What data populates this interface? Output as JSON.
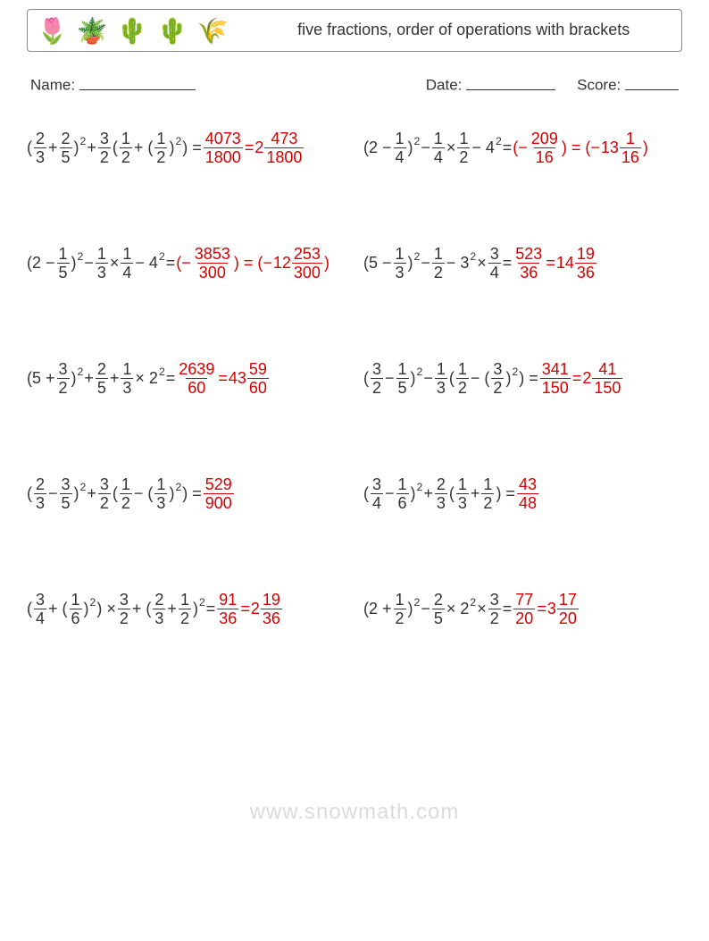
{
  "header": {
    "icons": [
      "🌷",
      "🪴",
      "🌵",
      "🌵",
      "🌾"
    ],
    "title": "five fractions, order of operations with brackets"
  },
  "info": {
    "name_label": "Name:",
    "date_label": "Date:",
    "score_label": "Score:"
  },
  "colors": {
    "text": "#333333",
    "answer": "#d40000",
    "border": "#888888"
  },
  "watermark": "www.snowmath.com",
  "problems": [
    [
      {
        "tokens": [
          {
            "t": "txt",
            "v": "("
          },
          {
            "t": "frac",
            "n": "2",
            "d": "3"
          },
          {
            "t": "txt",
            "v": " + "
          },
          {
            "t": "frac",
            "n": "2",
            "d": "5"
          },
          {
            "t": "txt",
            "v": ")"
          },
          {
            "t": "sup",
            "v": "2"
          },
          {
            "t": "txt",
            "v": " + "
          },
          {
            "t": "frac",
            "n": "3",
            "d": "2"
          },
          {
            "t": "txt",
            "v": "("
          },
          {
            "t": "frac",
            "n": "1",
            "d": "2"
          },
          {
            "t": "txt",
            "v": " + ("
          },
          {
            "t": "frac",
            "n": "1",
            "d": "2"
          },
          {
            "t": "txt",
            "v": ")"
          },
          {
            "t": "sup",
            "v": "2"
          },
          {
            "t": "txt",
            "v": ") = "
          },
          {
            "t": "ans",
            "c": [
              {
                "t": "frac",
                "n": "4073",
                "d": "1800"
              },
              {
                "t": "txt",
                "v": " = "
              },
              {
                "t": "mix",
                "w": "2",
                "n": "473",
                "d": "1800"
              }
            ]
          }
        ]
      },
      {
        "tokens": [
          {
            "t": "txt",
            "v": "(2 − "
          },
          {
            "t": "frac",
            "n": "1",
            "d": "4"
          },
          {
            "t": "txt",
            "v": ")"
          },
          {
            "t": "sup",
            "v": "2"
          },
          {
            "t": "txt",
            "v": " − "
          },
          {
            "t": "frac",
            "n": "1",
            "d": "4"
          },
          {
            "t": "txt",
            "v": " × "
          },
          {
            "t": "frac",
            "n": "1",
            "d": "2"
          },
          {
            "t": "txt",
            "v": " − 4"
          },
          {
            "t": "sup",
            "v": "2"
          },
          {
            "t": "txt",
            "v": " = "
          },
          {
            "t": "ans",
            "c": [
              {
                "t": "txt",
                "v": "(−"
              },
              {
                "t": "frac",
                "n": "209",
                "d": "16"
              },
              {
                "t": "txt",
                "v": ") = (−"
              },
              {
                "t": "mix",
                "w": "13",
                "n": "1",
                "d": "16"
              },
              {
                "t": "txt",
                "v": ")"
              }
            ]
          }
        ]
      }
    ],
    [
      {
        "tokens": [
          {
            "t": "txt",
            "v": "(2 − "
          },
          {
            "t": "frac",
            "n": "1",
            "d": "5"
          },
          {
            "t": "txt",
            "v": ")"
          },
          {
            "t": "sup",
            "v": "2"
          },
          {
            "t": "txt",
            "v": " − "
          },
          {
            "t": "frac",
            "n": "1",
            "d": "3"
          },
          {
            "t": "txt",
            "v": " × "
          },
          {
            "t": "frac",
            "n": "1",
            "d": "4"
          },
          {
            "t": "txt",
            "v": " − 4"
          },
          {
            "t": "sup",
            "v": "2"
          },
          {
            "t": "txt",
            "v": " = "
          },
          {
            "t": "ans",
            "c": [
              {
                "t": "txt",
                "v": "(−"
              },
              {
                "t": "frac",
                "n": "3853",
                "d": "300"
              },
              {
                "t": "txt",
                "v": ") = (−"
              },
              {
                "t": "mix",
                "w": "12",
                "n": "253",
                "d": "300"
              },
              {
                "t": "txt",
                "v": ")"
              }
            ]
          }
        ]
      },
      {
        "tokens": [
          {
            "t": "txt",
            "v": "(5 − "
          },
          {
            "t": "frac",
            "n": "1",
            "d": "3"
          },
          {
            "t": "txt",
            "v": ")"
          },
          {
            "t": "sup",
            "v": "2"
          },
          {
            "t": "txt",
            "v": " − "
          },
          {
            "t": "frac",
            "n": "1",
            "d": "2"
          },
          {
            "t": "txt",
            "v": " − 3"
          },
          {
            "t": "sup",
            "v": "2"
          },
          {
            "t": "txt",
            "v": " × "
          },
          {
            "t": "frac",
            "n": "3",
            "d": "4"
          },
          {
            "t": "txt",
            "v": " = "
          },
          {
            "t": "ans",
            "c": [
              {
                "t": "frac",
                "n": "523",
                "d": "36"
              },
              {
                "t": "txt",
                "v": " = "
              },
              {
                "t": "mix",
                "w": "14",
                "n": "19",
                "d": "36"
              }
            ]
          }
        ]
      }
    ],
    [
      {
        "tokens": [
          {
            "t": "txt",
            "v": "(5 + "
          },
          {
            "t": "frac",
            "n": "3",
            "d": "2"
          },
          {
            "t": "txt",
            "v": ")"
          },
          {
            "t": "sup",
            "v": "2"
          },
          {
            "t": "txt",
            "v": " + "
          },
          {
            "t": "frac",
            "n": "2",
            "d": "5"
          },
          {
            "t": "txt",
            "v": " + "
          },
          {
            "t": "frac",
            "n": "1",
            "d": "3"
          },
          {
            "t": "txt",
            "v": " × 2"
          },
          {
            "t": "sup",
            "v": "2"
          },
          {
            "t": "txt",
            "v": " = "
          },
          {
            "t": "ans",
            "c": [
              {
                "t": "frac",
                "n": "2639",
                "d": "60"
              },
              {
                "t": "txt",
                "v": " = "
              },
              {
                "t": "mix",
                "w": "43",
                "n": "59",
                "d": "60"
              }
            ]
          }
        ]
      },
      {
        "tokens": [
          {
            "t": "txt",
            "v": "("
          },
          {
            "t": "frac",
            "n": "3",
            "d": "2"
          },
          {
            "t": "txt",
            "v": " − "
          },
          {
            "t": "frac",
            "n": "1",
            "d": "5"
          },
          {
            "t": "txt",
            "v": ")"
          },
          {
            "t": "sup",
            "v": "2"
          },
          {
            "t": "txt",
            "v": " − "
          },
          {
            "t": "frac",
            "n": "1",
            "d": "3"
          },
          {
            "t": "txt",
            "v": "("
          },
          {
            "t": "frac",
            "n": "1",
            "d": "2"
          },
          {
            "t": "txt",
            "v": " − ("
          },
          {
            "t": "frac",
            "n": "3",
            "d": "2"
          },
          {
            "t": "txt",
            "v": ")"
          },
          {
            "t": "sup",
            "v": "2"
          },
          {
            "t": "txt",
            "v": ") = "
          },
          {
            "t": "ans",
            "c": [
              {
                "t": "frac",
                "n": "341",
                "d": "150"
              },
              {
                "t": "txt",
                "v": " = "
              },
              {
                "t": "mix",
                "w": "2",
                "n": "41",
                "d": "150"
              }
            ]
          }
        ]
      }
    ],
    [
      {
        "tokens": [
          {
            "t": "txt",
            "v": "("
          },
          {
            "t": "frac",
            "n": "2",
            "d": "3"
          },
          {
            "t": "txt",
            "v": " − "
          },
          {
            "t": "frac",
            "n": "3",
            "d": "5"
          },
          {
            "t": "txt",
            "v": ")"
          },
          {
            "t": "sup",
            "v": "2"
          },
          {
            "t": "txt",
            "v": " + "
          },
          {
            "t": "frac",
            "n": "3",
            "d": "2"
          },
          {
            "t": "txt",
            "v": "("
          },
          {
            "t": "frac",
            "n": "1",
            "d": "2"
          },
          {
            "t": "txt",
            "v": " − ("
          },
          {
            "t": "frac",
            "n": "1",
            "d": "3"
          },
          {
            "t": "txt",
            "v": ")"
          },
          {
            "t": "sup",
            "v": "2"
          },
          {
            "t": "txt",
            "v": ") = "
          },
          {
            "t": "ans",
            "c": [
              {
                "t": "frac",
                "n": "529",
                "d": "900"
              }
            ]
          }
        ]
      },
      {
        "tokens": [
          {
            "t": "txt",
            "v": "("
          },
          {
            "t": "frac",
            "n": "3",
            "d": "4"
          },
          {
            "t": "txt",
            "v": " − "
          },
          {
            "t": "frac",
            "n": "1",
            "d": "6"
          },
          {
            "t": "txt",
            "v": ")"
          },
          {
            "t": "sup",
            "v": "2"
          },
          {
            "t": "txt",
            "v": " + "
          },
          {
            "t": "frac",
            "n": "2",
            "d": "3"
          },
          {
            "t": "txt",
            "v": "("
          },
          {
            "t": "frac",
            "n": "1",
            "d": "3"
          },
          {
            "t": "txt",
            "v": " + "
          },
          {
            "t": "frac",
            "n": "1",
            "d": "2"
          },
          {
            "t": "txt",
            "v": ") = "
          },
          {
            "t": "ans",
            "c": [
              {
                "t": "frac",
                "n": "43",
                "d": "48"
              }
            ]
          }
        ]
      }
    ],
    [
      {
        "tokens": [
          {
            "t": "txt",
            "v": "("
          },
          {
            "t": "frac",
            "n": "3",
            "d": "4"
          },
          {
            "t": "txt",
            "v": " + ("
          },
          {
            "t": "frac",
            "n": "1",
            "d": "6"
          },
          {
            "t": "txt",
            "v": ")"
          },
          {
            "t": "sup",
            "v": "2"
          },
          {
            "t": "txt",
            "v": ") × "
          },
          {
            "t": "frac",
            "n": "3",
            "d": "2"
          },
          {
            "t": "txt",
            "v": " + ("
          },
          {
            "t": "frac",
            "n": "2",
            "d": "3"
          },
          {
            "t": "txt",
            "v": " + "
          },
          {
            "t": "frac",
            "n": "1",
            "d": "2"
          },
          {
            "t": "txt",
            "v": ")"
          },
          {
            "t": "sup",
            "v": "2"
          },
          {
            "t": "txt",
            "v": " = "
          },
          {
            "t": "ans",
            "c": [
              {
                "t": "frac",
                "n": "91",
                "d": "36"
              },
              {
                "t": "txt",
                "v": " = "
              },
              {
                "t": "mix",
                "w": "2",
                "n": "19",
                "d": "36"
              }
            ]
          }
        ]
      },
      {
        "tokens": [
          {
            "t": "txt",
            "v": "(2 + "
          },
          {
            "t": "frac",
            "n": "1",
            "d": "2"
          },
          {
            "t": "txt",
            "v": ")"
          },
          {
            "t": "sup",
            "v": "2"
          },
          {
            "t": "txt",
            "v": " − "
          },
          {
            "t": "frac",
            "n": "2",
            "d": "5"
          },
          {
            "t": "txt",
            "v": " × 2"
          },
          {
            "t": "sup",
            "v": "2"
          },
          {
            "t": "txt",
            "v": " × "
          },
          {
            "t": "frac",
            "n": "3",
            "d": "2"
          },
          {
            "t": "txt",
            "v": " = "
          },
          {
            "t": "ans",
            "c": [
              {
                "t": "frac",
                "n": "77",
                "d": "20"
              },
              {
                "t": "txt",
                "v": " = "
              },
              {
                "t": "mix",
                "w": "3",
                "n": "17",
                "d": "20"
              }
            ]
          }
        ]
      }
    ]
  ]
}
